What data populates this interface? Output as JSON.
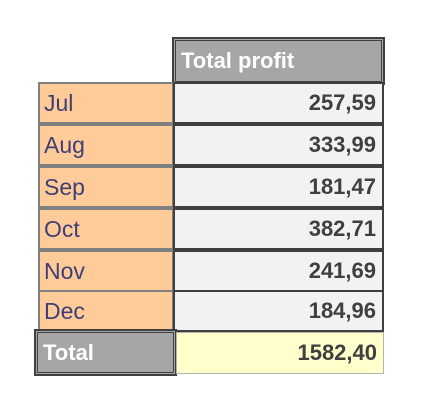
{
  "table": {
    "header": "Total profit",
    "rows": [
      {
        "month": "Jul",
        "profit": "257,59"
      },
      {
        "month": "Aug",
        "profit": "333,99"
      },
      {
        "month": "Sep",
        "profit": "181,47"
      },
      {
        "month": "Oct",
        "profit": "382,71"
      },
      {
        "month": "Nov",
        "profit": "241,69"
      },
      {
        "month": "Dec",
        "profit": "184,96"
      }
    ],
    "total_label": "Total",
    "total_value": "1582,40"
  },
  "colors": {
    "header_bg": "#a6a6a6",
    "month_bg": "#ffcc99",
    "month_text": "#3f3f76",
    "value_bg": "#f2f2f2",
    "total_value_bg": "#ffffcc"
  }
}
